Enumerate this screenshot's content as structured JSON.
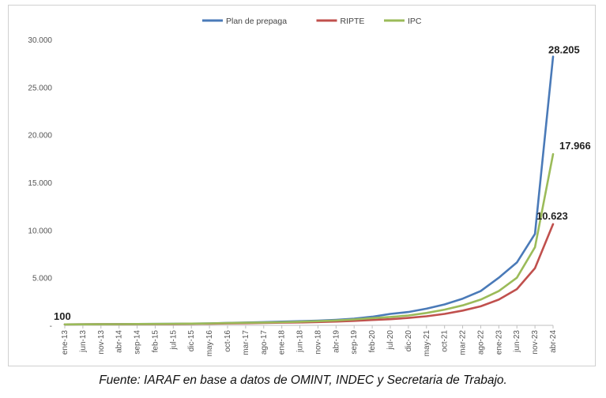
{
  "chart_data": {
    "type": "line",
    "title": "",
    "xlabel": "",
    "ylabel": "",
    "ylim": [
      0,
      30000
    ],
    "y_ticks": [
      "-",
      "5.000",
      "10.000",
      "15.000",
      "20.000",
      "25.000",
      "30.000"
    ],
    "x_tick_labels": [
      "ene-13",
      "jun-13",
      "nov-13",
      "abr-14",
      "sep-14",
      "feb-15",
      "jul-15",
      "dic-15",
      "may-16",
      "oct-16",
      "mar-17",
      "ago-17",
      "ene-18",
      "jun-18",
      "nov-18",
      "abr-19",
      "sep-19",
      "feb-20",
      "jul-20",
      "dic-20",
      "may-21",
      "oct-21",
      "mar-22",
      "ago-22",
      "ene-23",
      "jun-23",
      "nov-23",
      "abr-24"
    ],
    "grid": false,
    "legend_position": "top",
    "start_label": "100",
    "series": [
      {
        "name": "Plan de prepaga",
        "color": "#4a7ab8",
        "end_label": "28.205",
        "values": [
          100,
          110,
          120,
          130,
          140,
          150,
          165,
          180,
          210,
          260,
          300,
          340,
          390,
          440,
          500,
          580,
          700,
          900,
          1200,
          1400,
          1750,
          2200,
          2800,
          3600,
          5000,
          6600,
          9600,
          28205
        ]
      },
      {
        "name": "RIPTE",
        "color": "#c0504d",
        "end_label": "10.623",
        "values": [
          100,
          105,
          112,
          120,
          128,
          135,
          145,
          155,
          175,
          200,
          225,
          255,
          280,
          310,
          350,
          400,
          470,
          560,
          650,
          780,
          950,
          1200,
          1550,
          2000,
          2700,
          3800,
          6000,
          10623
        ]
      },
      {
        "name": "IPC",
        "color": "#9bbb59",
        "end_label": "17.966",
        "values": [
          100,
          108,
          117,
          128,
          140,
          152,
          165,
          180,
          210,
          240,
          270,
          300,
          330,
          380,
          440,
          510,
          620,
          760,
          880,
          1040,
          1300,
          1650,
          2100,
          2700,
          3600,
          5000,
          8200,
          17966
        ]
      }
    ]
  },
  "caption": "Fuente: IARAF en base a datos de OMINT, INDEC y Secretaria de Trabajo."
}
